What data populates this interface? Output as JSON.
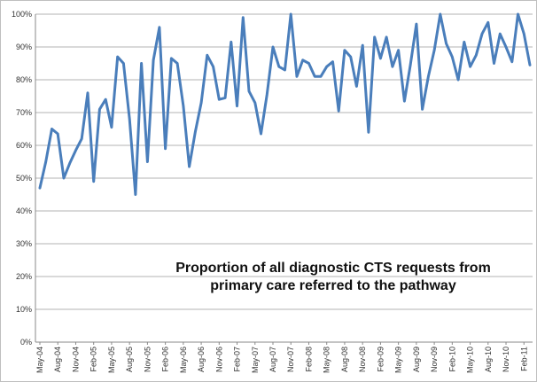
{
  "chart_data": {
    "type": "line",
    "title": "",
    "xlabel": "",
    "ylabel": "",
    "ylim": [
      0,
      100
    ],
    "y_tick_labels": [
      "0%",
      "10%",
      "20%",
      "30%",
      "40%",
      "50%",
      "60%",
      "70%",
      "80%",
      "90%",
      "100%"
    ],
    "x_tick_labels": [
      "May-04",
      "Aug-04",
      "Nov-04",
      "Feb-05",
      "May-05",
      "Aug-05",
      "Nov-05",
      "Feb-06",
      "May-06",
      "Aug-06",
      "Nov-06",
      "Feb-07",
      "May-07",
      "Aug-07",
      "Nov-07",
      "Feb-08",
      "May-08",
      "Aug-08",
      "Nov-08",
      "Feb-09",
      "May-09",
      "Aug-09",
      "Nov-09",
      "Feb-10",
      "May-10",
      "Aug-10",
      "Nov-10",
      "Feb-11"
    ],
    "annotation": [
      "Proportion of all diagnostic CTS requests from",
      "primary care referred to the pathway"
    ],
    "grid": "horizontal",
    "line_color": "#4a7ebb",
    "series": [
      {
        "values": [
          47,
          55,
          65,
          63.5,
          50,
          54.5,
          58.5,
          62,
          76,
          49,
          71,
          74,
          65.5,
          87,
          85,
          68,
          45,
          85,
          55,
          86,
          96,
          59,
          86.5,
          85,
          72,
          53.5,
          64,
          73,
          87.5,
          84,
          74,
          74.5,
          91.5,
          72,
          99,
          76.5,
          73,
          63.5,
          75.5,
          90,
          84,
          83,
          100,
          81,
          86,
          85,
          81,
          81,
          84,
          85.5,
          70.5,
          89,
          87,
          78,
          90.5,
          64,
          93,
          86.5,
          93,
          84,
          89,
          73.5,
          84.5,
          97,
          71,
          81,
          89,
          100,
          91,
          87,
          80,
          91.5,
          84,
          87.5,
          94,
          97.5,
          85,
          94,
          90,
          85.5,
          100,
          94,
          84.5
        ]
      }
    ]
  }
}
